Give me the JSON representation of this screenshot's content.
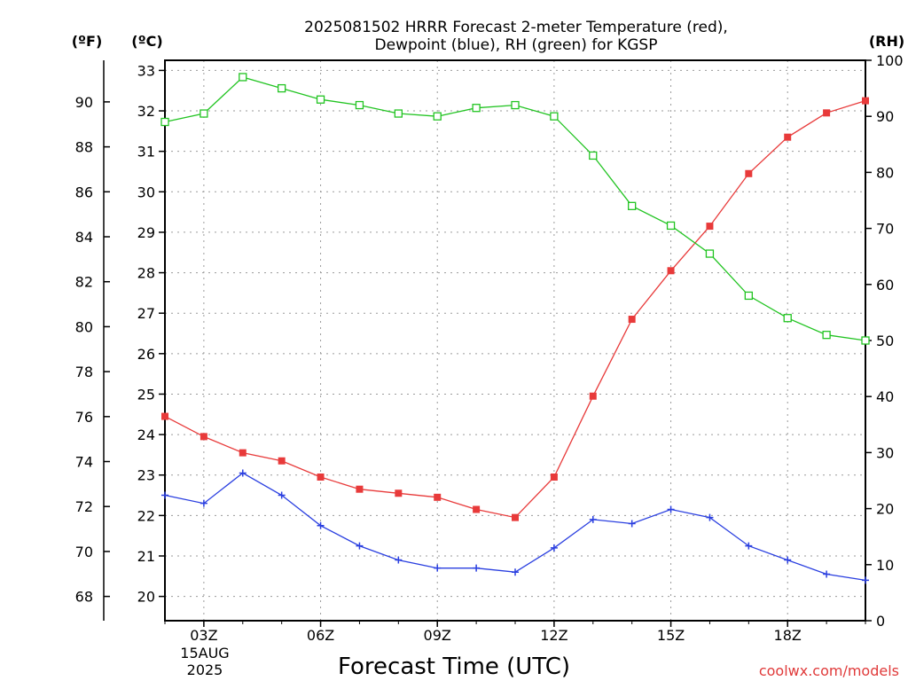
{
  "chart_data": {
    "type": "line",
    "title_lines": [
      "2025081502 HRRR Forecast 2-meter Temperature (red),",
      "Dewpoint (blue), RH (green) for KGSP"
    ],
    "xlabel": "Forecast Time (UTC)",
    "credit": "coolwx.com/models",
    "date_label": [
      "15AUG",
      "2025"
    ],
    "units": {
      "fahrenheit": "(ºF)",
      "celsius": "(ºC)",
      "rh": "(RH)"
    },
    "x_hours": [
      2,
      3,
      4,
      5,
      6,
      7,
      8,
      9,
      10,
      11,
      12,
      13,
      14,
      15,
      16,
      17,
      18,
      19,
      20
    ],
    "xlim": [
      2,
      20
    ],
    "x_ticks": [
      {
        "hour": 3,
        "label": "03Z"
      },
      {
        "hour": 6,
        "label": "06Z"
      },
      {
        "hour": 9,
        "label": "09Z"
      },
      {
        "hour": 12,
        "label": "12Z"
      },
      {
        "hour": 15,
        "label": "15Z"
      },
      {
        "hour": 18,
        "label": "18Z"
      }
    ],
    "celsius_axis": {
      "ylim": [
        19.4,
        33.25
      ],
      "ticks": [
        "20",
        "21",
        "22",
        "23",
        "24",
        "25",
        "26",
        "27",
        "28",
        "29",
        "30",
        "31",
        "32",
        "33"
      ]
    },
    "fahrenheit_axis": {
      "ticks": [
        "68",
        "70",
        "72",
        "74",
        "76",
        "78",
        "80",
        "82",
        "84",
        "86",
        "88",
        "90"
      ]
    },
    "rh_axis": {
      "ylim": [
        0,
        100
      ],
      "ticks": [
        "0",
        "10",
        "20",
        "30",
        "40",
        "50",
        "60",
        "70",
        "80",
        "90",
        "100"
      ]
    },
    "grid": true,
    "series": [
      {
        "name": "Temperature",
        "axis": "celsius",
        "color": "#e83a3a",
        "marker": "filled-square",
        "values": [
          24.45,
          23.95,
          23.55,
          23.35,
          22.95,
          22.65,
          22.55,
          22.45,
          22.15,
          21.95,
          22.95,
          24.95,
          26.85,
          28.05,
          29.15,
          30.45,
          31.35,
          31.95,
          32.25
        ]
      },
      {
        "name": "Dewpoint",
        "axis": "celsius",
        "color": "#2a3fe0",
        "marker": "plus",
        "values": [
          22.5,
          22.3,
          23.05,
          22.5,
          21.75,
          21.25,
          20.9,
          20.7,
          20.7,
          20.6,
          21.2,
          21.9,
          21.8,
          22.15,
          21.95,
          21.25,
          20.9,
          20.55,
          20.4
        ]
      },
      {
        "name": "RH",
        "axis": "rh",
        "color": "#22c422",
        "marker": "open-square",
        "values": [
          89,
          90.5,
          97,
          95,
          93,
          92,
          90.5,
          90,
          91.5,
          92,
          90,
          83,
          74,
          70.5,
          65.5,
          58,
          54,
          51,
          50
        ]
      }
    ]
  }
}
